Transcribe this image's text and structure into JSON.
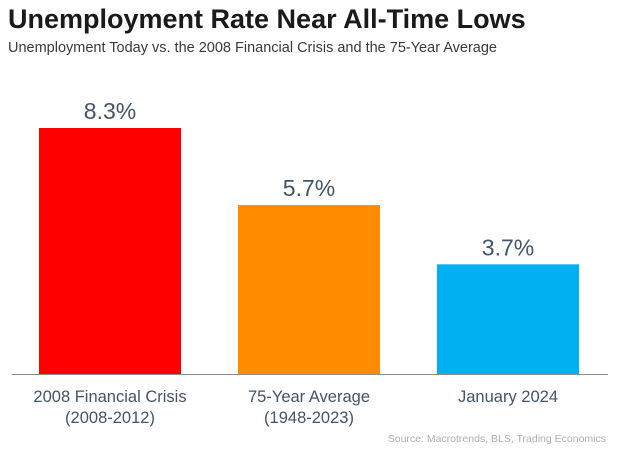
{
  "header": {
    "title": "Unemployment Rate Near All-Time Lows",
    "subtitle": "Unemployment Today vs. the 2008 Financial Crisis and the 75-Year Average"
  },
  "footer": {
    "source": "Source: Macrotrends, BLS, Trading Economics"
  },
  "chart_data": {
    "type": "bar",
    "title": "Unemployment Rate Near All-Time Lows",
    "subtitle": "Unemployment Today vs. the 2008 Financial Crisis and the 75-Year Average",
    "categories": [
      [
        "2008 Financial Crisis",
        "(2008-2012)"
      ],
      [
        "75-Year Average",
        "(1948-2023)"
      ],
      [
        "January 2024"
      ]
    ],
    "values": [
      8.3,
      5.7,
      3.7
    ],
    "data_labels": [
      "8.3%",
      "5.7%",
      "3.7%"
    ],
    "colors": [
      "#ff0000",
      "#ff8c00",
      "#00b0f0"
    ],
    "ylim": [
      0,
      9
    ],
    "grid": false,
    "legend": "none",
    "xlabel": "",
    "ylabel": ""
  }
}
